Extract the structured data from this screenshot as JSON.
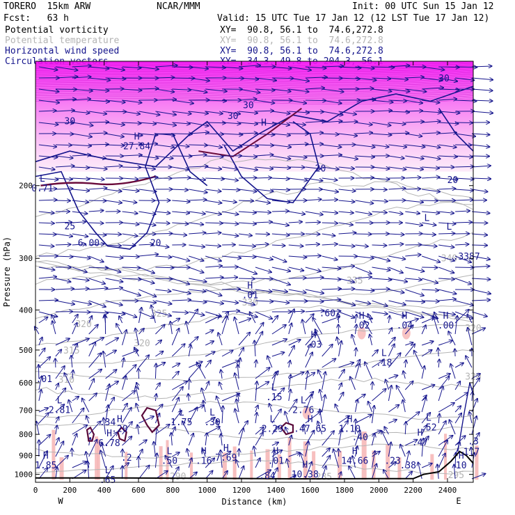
{
  "header": {
    "model": "TORERO  15km ARW",
    "org": "NCAR/MMM",
    "init": "Init: 00 UTC Sun 15 Jan 12",
    "fcst": "Fcst:   63 h",
    "valid": "Valid: 15 UTC Tue 17 Jan 12 (12 LST Tue 17 Jan 12)"
  },
  "fields": [
    {
      "label": "Potential vorticity",
      "xy": "XY=  90.8, 56.1 to  74.6,272.8",
      "color": "#000000"
    },
    {
      "label": "Potential temperature",
      "xy": "XY=  90.8, 56.1 to  74.6,272.8",
      "color": "#b4b4b4"
    },
    {
      "label": "Horizontal wind speed",
      "xy": "XY=  90.8, 56.1 to  74.6,272.8",
      "color": "#14148c"
    },
    {
      "label": "Circulation vectors",
      "xy": "XY=  34.3, 49.8 to 204.3, 56.1",
      "color": "#14148c"
    }
  ],
  "chart_data": {
    "type": "cross-section",
    "xlabel": "Distance (km)",
    "ylabel": "Pressure (hPa)",
    "x_ticks": [
      0,
      200,
      400,
      600,
      800,
      1000,
      1200,
      1400,
      1600,
      1800,
      2000,
      2200,
      2400
    ],
    "y_ticks": [
      200,
      300,
      400,
      500,
      600,
      700,
      800,
      900,
      1000
    ],
    "xlim": [
      0,
      2550
    ],
    "ylim": [
      1045,
      100
    ],
    "y_scale": "log",
    "x_end_labels": {
      "left": "W",
      "right": "E"
    },
    "theta_contours": [
      {
        "label": "285",
        "x": 1680,
        "p": 1030
      },
      {
        "label": "290",
        "x": 830,
        "p": 1028
      },
      {
        "label": "295",
        "x": 2450,
        "p": 1020
      },
      {
        "label": "310",
        "x": 180,
        "p": 600
      },
      {
        "label": "315",
        "x": 210,
        "p": 510
      },
      {
        "label": "320",
        "x": 280,
        "p": 440
      },
      {
        "label": "325",
        "x": 720,
        "p": 415
      },
      {
        "label": "330",
        "x": 1250,
        "p": 390
      },
      {
        "label": "335",
        "x": 1860,
        "p": 345
      },
      {
        "label": "340",
        "x": 2410,
        "p": 305
      },
      {
        "label": "320",
        "x": 2550,
        "p": 450
      },
      {
        "label": "320",
        "x": 620,
        "p": 490
      },
      {
        "label": "320",
        "x": 2550,
        "p": 590
      }
    ],
    "wind_contours": [
      {
        "label": "30",
        "x": 200,
        "p": 142
      },
      {
        "label": "30",
        "x": 1150,
        "p": 138
      },
      {
        "label": "20",
        "x": 1660,
        "p": 185
      },
      {
        "label": "20",
        "x": 700,
        "p": 280
      },
      {
        "label": "20",
        "x": 2430,
        "p": 197
      },
      {
        "label": "25",
        "x": 200,
        "p": 255
      },
      {
        "label": "30",
        "x": 1240,
        "p": 130
      },
      {
        "label": "30",
        "x": 2380,
        "p": 112
      }
    ],
    "extrema": [
      {
        "type": "H",
        "value": "27.84",
        "x": 590,
        "p": 162
      },
      {
        "type": "H",
        "value": "",
        "x": 1330,
        "p": 150
      },
      {
        "type": "L",
        "value": "0.71",
        "x": 40,
        "p": 205
      },
      {
        "type": "L",
        "value": "",
        "x": 2280,
        "p": 255
      },
      {
        "type": "L",
        "value": "",
        "x": 2410,
        "p": 268
      },
      {
        "type": "",
        "value": "6.00",
        "x": 310,
        "p": 278
      },
      {
        "type": "",
        "value": ".3387",
        "x": 2510,
        "p": 300
      },
      {
        "type": "H",
        "value": ".01",
        "x": 1250,
        "p": 372
      },
      {
        "type": "",
        "value": ".60",
        "x": 1700,
        "p": 411
      },
      {
        "type": "H",
        "value": ".02",
        "x": 1900,
        "p": 440
      },
      {
        "type": "H",
        "value": ".04",
        "x": 2150,
        "p": 440
      },
      {
        "type": "H",
        "value": ".00",
        "x": 2390,
        "p": 440
      },
      {
        "type": "H",
        "value": ".03",
        "x": 1620,
        "p": 490
      },
      {
        "type": "L",
        "value": ".18",
        "x": 2030,
        "p": 542
      },
      {
        "type": "",
        "value": ".01",
        "x": 50,
        "p": 593
      },
      {
        "type": "L",
        "value": ".15",
        "x": 1390,
        "p": 656
      },
      {
        "type": "L",
        "value": "2.81",
        "x": 140,
        "p": 705
      },
      {
        "type": "L",
        "value": "2.76",
        "x": 1560,
        "p": 705
      },
      {
        "type": "L",
        "value": "1.75",
        "x": 850,
        "p": 754
      },
      {
        "type": "L",
        "value": ".30",
        "x": 1030,
        "p": 754
      },
      {
        "type": "",
        "value": ".34",
        "x": 420,
        "p": 754
      },
      {
        "type": "H",
        "value": ".20",
        "x": 490,
        "p": 782
      },
      {
        "type": "L",
        "value": "2.29",
        "x": 1380,
        "p": 782
      },
      {
        "type": "H",
        "value": ".47.65",
        "x": 1600,
        "p": 782
      },
      {
        "type": "H",
        "value": "1.10",
        "x": 1830,
        "p": 782
      },
      {
        "type": "L",
        "value": ".52",
        "x": 2290,
        "p": 777
      },
      {
        "type": "",
        "value": ".40",
        "x": 1890,
        "p": 820
      },
      {
        "type": "H",
        "value": "6.78",
        "x": 430,
        "p": 848
      },
      {
        "type": "H",
        "value": ".47",
        "x": 2240,
        "p": 844
      },
      {
        "type": "",
        "value": ".3",
        "x": 2550,
        "p": 840
      },
      {
        "type": "L",
        "value": ".50",
        "x": 780,
        "p": 935
      },
      {
        "type": "H",
        "value": ".16",
        "x": 980,
        "p": 935
      },
      {
        "type": "H",
        "value": "7.69",
        "x": 1110,
        "p": 920
      },
      {
        "type": "",
        "value": ".2",
        "x": 530,
        "p": 920
      },
      {
        "type": "H",
        "value": ".01",
        "x": 1400,
        "p": 935
      },
      {
        "type": "H",
        "value": "14.66",
        "x": 1860,
        "p": 935
      },
      {
        "type": "",
        "value": ".23",
        "x": 2080,
        "p": 935
      },
      {
        "type": "",
        "value": "1.7",
        "x": 2540,
        "p": 890
      },
      {
        "type": "H",
        "value": "1.85",
        "x": 60,
        "p": 960
      },
      {
        "type": "H",
        "value": "10",
        "x": 2480,
        "p": 960
      },
      {
        "type": "",
        "value": ".38",
        "x": 2170,
        "p": 960
      },
      {
        "type": "H",
        "value": "10.38",
        "x": 1570,
        "p": 1010
      },
      {
        "type": "",
        "value": ".84",
        "x": 1350,
        "p": 1017
      },
      {
        "type": "L",
        "value": ".65",
        "x": 420,
        "p": 1040
      }
    ]
  }
}
